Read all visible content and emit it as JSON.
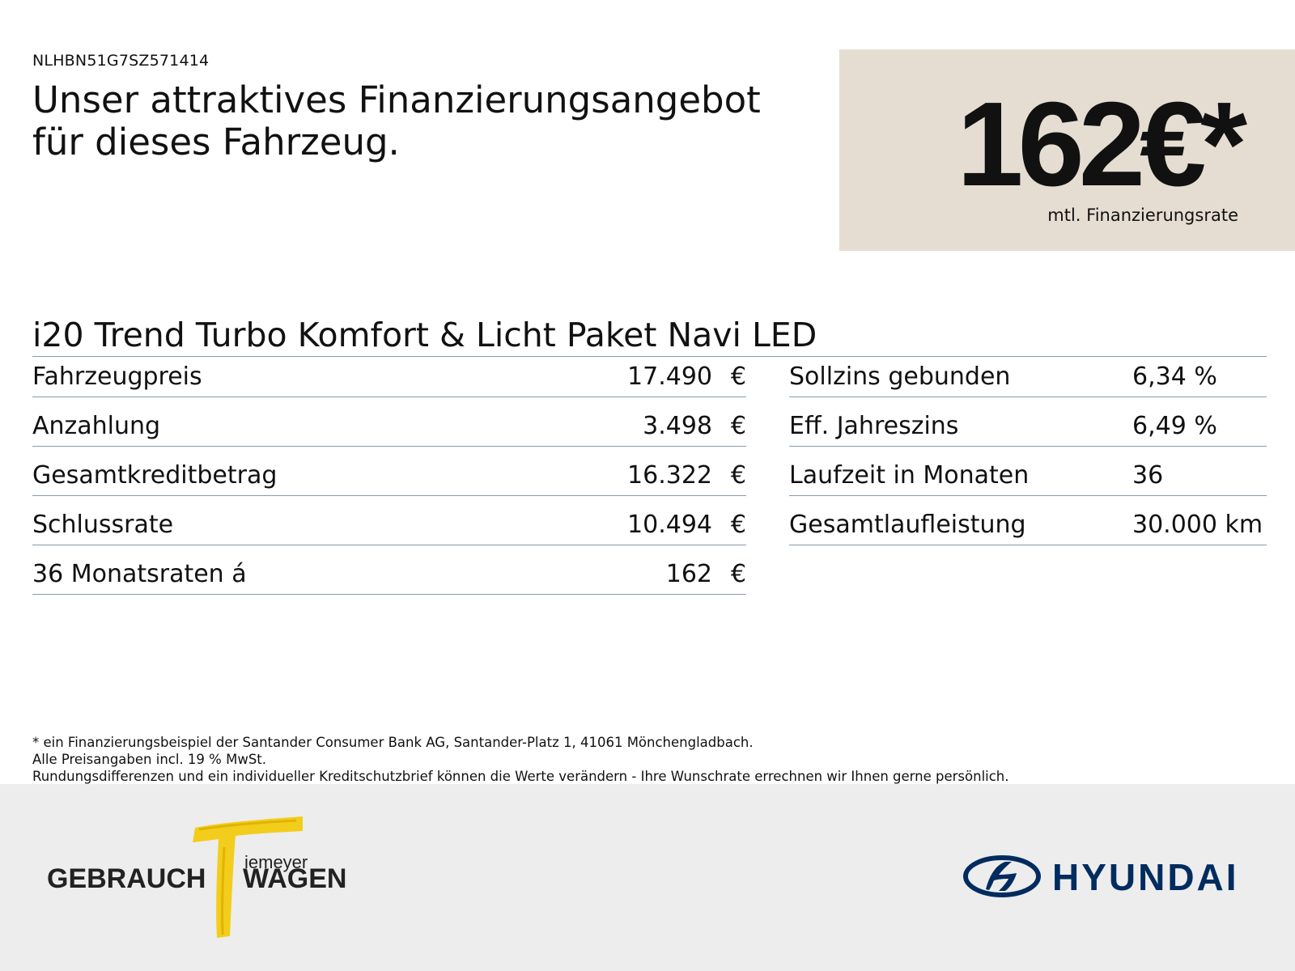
{
  "vin": "NLHBN51G7SZ571414",
  "headline": {
    "line1": "Unser attraktives Finanzierungsangebot",
    "line2": "für dieses Fahrzeug."
  },
  "price": {
    "amount": "162€*",
    "label": "mtl. Finanzierungsrate",
    "box_color": "#e6ddd2"
  },
  "model": "i20 Trend Turbo Komfort & Licht Paket Navi LED",
  "left_rows": [
    {
      "label": "Fahrzeugpreis",
      "value": "17.490",
      "unit": "€"
    },
    {
      "label": "Anzahlung",
      "value": "3.498",
      "unit": "€"
    },
    {
      "label": "Gesamtkreditbetrag",
      "value": "16.322",
      "unit": "€"
    },
    {
      "label": "Schlussrate",
      "value": "10.494",
      "unit": "€"
    },
    {
      "label": "36 Monatsraten á",
      "value": "162",
      "unit": "€"
    }
  ],
  "right_rows": [
    {
      "label": "Sollzins gebunden",
      "value": "6,34 %"
    },
    {
      "label": "Eff. Jahreszins",
      "value": "6,49 %"
    },
    {
      "label": "Laufzeit in Monaten",
      "value": "36"
    },
    {
      "label": "Gesamtlaufleistung",
      "value": "30.000 km"
    }
  ],
  "footnote": {
    "line1": "* ein Finanzierungsbeispiel der Santander Consumer Bank AG, Santander-Platz 1, 41061 Mönchengladbach.",
    "line2": "Alle Preisangaben incl. 19 % MwSt.",
    "line3": "Rundungsdifferenzen und ein individueller Kreditschutzbrief können die Werte verändern - Ihre Wunschrate errechnen wir Ihnen gerne persönlich."
  },
  "dealer_logo": {
    "word1": "GEBRAUCH",
    "word2": "WAGEN",
    "script": "iemeyer",
    "accent_color": "#f2cd1c"
  },
  "brand_logo": {
    "text": "HYUNDAI",
    "color": "#002c5f"
  }
}
